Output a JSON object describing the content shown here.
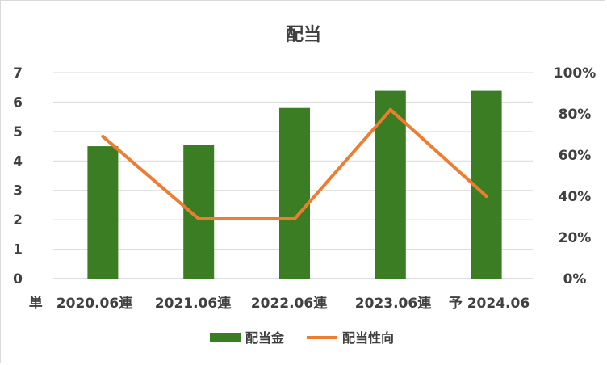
{
  "chart_data": {
    "type": "bar",
    "title": "配当",
    "categories": [
      "単　2020.06連",
      "2021.06連",
      "2022.06連",
      "2023.06連",
      "予 2024.06"
    ],
    "series": [
      {
        "name": "配当金",
        "type": "bar",
        "axis": "left",
        "values": [
          4.5,
          4.55,
          5.8,
          6.38,
          6.38
        ],
        "color": "#3a7d22"
      },
      {
        "name": "配当性向",
        "type": "line",
        "axis": "right",
        "values": [
          0.69,
          0.29,
          0.29,
          0.82,
          0.4
        ],
        "color": "#ed7d31"
      }
    ],
    "y_left": {
      "min": 0,
      "max": 7,
      "ticks": [
        "0",
        "1",
        "2",
        "3",
        "4",
        "5",
        "6",
        "7"
      ]
    },
    "y_right": {
      "min": 0,
      "max": 1,
      "ticks": [
        "0%",
        "20%",
        "40%",
        "60%",
        "80%",
        "100%"
      ]
    },
    "grid": true,
    "legend_position": "bottom"
  }
}
